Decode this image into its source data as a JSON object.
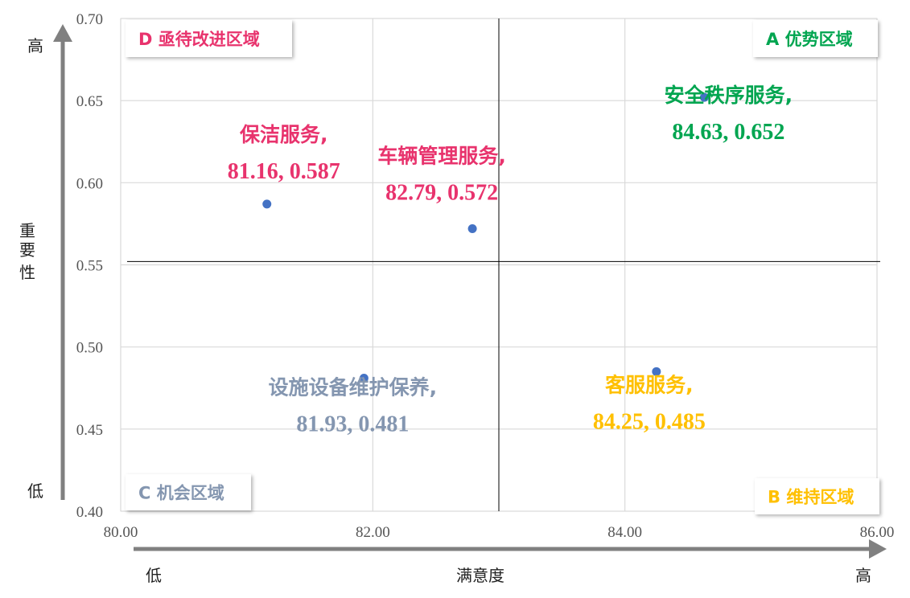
{
  "chart_data": {
    "type": "scatter",
    "x_ticks": [
      "80.00",
      "82.00",
      "84.00",
      "86.00"
    ],
    "y_ticks": [
      "0.70",
      "0.65",
      "0.60",
      "0.55",
      "0.50",
      "0.45",
      "0.40"
    ],
    "xlim": [
      80,
      86
    ],
    "ylim": [
      0.4,
      0.7
    ],
    "grid": true,
    "xlabel": "满意度",
    "x_low": "低",
    "x_high": "高",
    "ylabel": "重要性",
    "y_low": "低",
    "y_high": "高",
    "divider": {
      "x": 83.0,
      "y": 0.552
    },
    "quadrants": [
      {
        "label": "D 亟待改进区域",
        "corner": "top-left",
        "color": "#e8336d"
      },
      {
        "label": "A 优势区域",
        "corner": "top-right",
        "color": "#00a550"
      },
      {
        "label": "C 机会区域",
        "corner": "bottom-left",
        "color": "#8496b0"
      },
      {
        "label": "B 维持区域",
        "corner": "bottom-right",
        "color": "#ffc000"
      }
    ],
    "points": [
      {
        "name": "保洁服务,",
        "value_label": "81.16, 0.587",
        "x": 81.16,
        "y": 0.587,
        "color": "#e8336d"
      },
      {
        "name": "车辆管理服务,",
        "value_label": "82.79, 0.572",
        "x": 82.79,
        "y": 0.572,
        "color": "#e8336d"
      },
      {
        "name": "安全秩序服务,",
        "value_label": "84.63, 0.652",
        "x": 84.63,
        "y": 0.652,
        "color": "#00a550"
      },
      {
        "name": "设施设备维护保养,",
        "value_label": "81.93, 0.481",
        "x": 81.93,
        "y": 0.481,
        "color": "#8496b0"
      },
      {
        "name": "客服服务,",
        "value_label": "84.25, 0.485",
        "x": 84.25,
        "y": 0.485,
        "color": "#ffc000"
      }
    ],
    "marker_color": "#4472c4"
  }
}
